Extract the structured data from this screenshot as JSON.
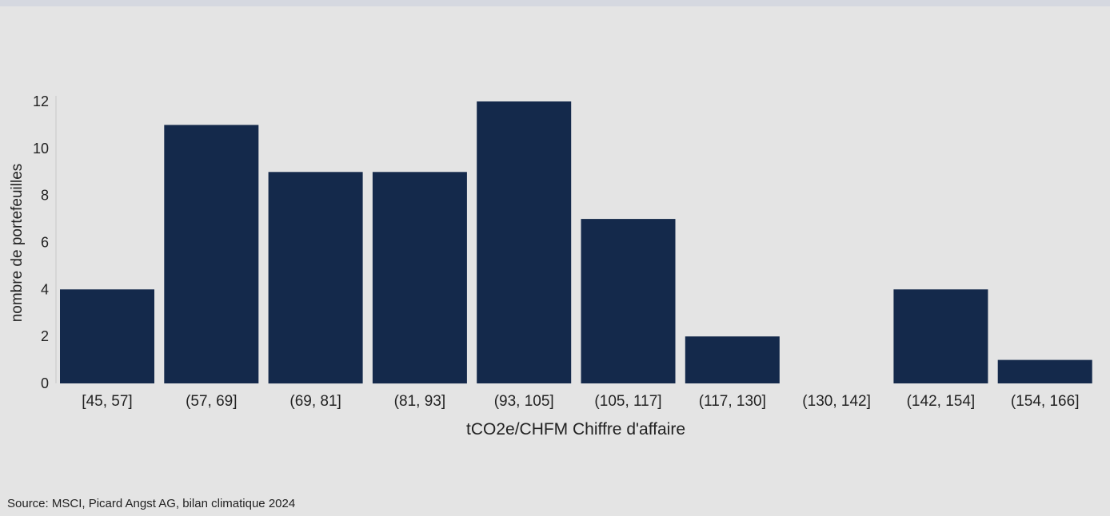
{
  "chart_data": {
    "type": "bar",
    "categories": [
      "[45, 57]",
      "(57, 69]",
      "(69, 81]",
      "(81, 93]",
      "(93, 105]",
      "(105, 117]",
      "(117, 130]",
      "(130, 142]",
      "(142, 154]",
      "(154, 166]"
    ],
    "values": [
      4,
      11,
      9,
      9,
      12,
      7,
      2,
      0,
      4,
      1
    ],
    "xlabel": "tCO2e/CHFM Chiffre d'affaire",
    "ylabel": "nombre de portefeuilles",
    "ylim": [
      0,
      12
    ],
    "yticks": [
      0,
      2,
      4,
      6,
      8,
      10,
      12
    ],
    "grid": false,
    "bar_color": "#14294b"
  },
  "source": "Source: MSCI, Picard Angst AG, bilan climatique 2024"
}
